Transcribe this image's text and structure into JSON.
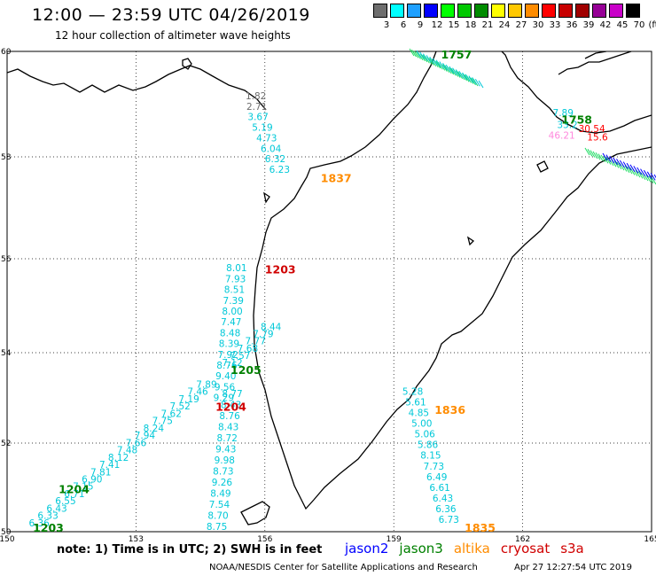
{
  "header": {
    "title": "12:00 — 23:59 UTC 04/26/2019",
    "subtitle": "12 hour collection of altimeter wave heights"
  },
  "legend": {
    "unit": "(ft)",
    "bins": [
      {
        "label": "3",
        "color": "#6e6e6e"
      },
      {
        "label": "6",
        "color": "#00ffff"
      },
      {
        "label": "9",
        "color": "#1ea0ff"
      },
      {
        "label": "12",
        "color": "#0000ff"
      },
      {
        "label": "15",
        "color": "#00ff00"
      },
      {
        "label": "18",
        "color": "#00c800"
      },
      {
        "label": "21",
        "color": "#008c00"
      },
      {
        "label": "24",
        "color": "#ffff00"
      },
      {
        "label": "27",
        "color": "#ffc800"
      },
      {
        "label": "30",
        "color": "#ff8c00"
      },
      {
        "label": "33",
        "color": "#ff0000"
      },
      {
        "label": "36",
        "color": "#c80000"
      },
      {
        "label": "39",
        "color": "#a00000"
      },
      {
        "label": "42",
        "color": "#960096"
      },
      {
        "label": "45",
        "color": "#c800c8"
      },
      {
        "label": "70",
        "color": "#000000"
      }
    ]
  },
  "map": {
    "lon_ticks": [
      "150",
      "153",
      "156",
      "159",
      "162",
      "165"
    ],
    "lat_ticks": [
      "60",
      "58",
      "56",
      "54",
      "52",
      "50"
    ],
    "lon_range": [
      150,
      165
    ],
    "lat_range": [
      50,
      60
    ],
    "pass_labels": [
      {
        "text": "1837",
        "lon": 157.3,
        "lat": 57.28,
        "color": "#ff8c00"
      },
      {
        "text": "1203",
        "lon": 156.0,
        "lat": 55.38,
        "color": "#d00000"
      },
      {
        "text": "1205",
        "lon": 155.2,
        "lat": 53.28,
        "color": "#008000"
      },
      {
        "text": "1204",
        "lon": 154.85,
        "lat": 52.52,
        "color": "#d00000"
      },
      {
        "text": "1836",
        "lon": 159.95,
        "lat": 52.45,
        "color": "#ff8c00"
      },
      {
        "text": "1204",
        "lon": 151.2,
        "lat": 50.8,
        "color": "#008000"
      },
      {
        "text": "1203",
        "lon": 150.6,
        "lat": 50.0,
        "color": "#008000"
      },
      {
        "text": "1835",
        "lon": 160.65,
        "lat": 50.0,
        "color": "#ff8c00"
      },
      {
        "text": "1758",
        "lon": 162.9,
        "lat": 58.5,
        "color": "#008000"
      },
      {
        "text": "1757",
        "lon": 160.1,
        "lat": 59.85,
        "color": "#008000"
      }
    ],
    "tracks": [
      {
        "name": "track-cryosat-north",
        "color": "#6e6e6e",
        "values": [
          "1.82",
          "2.71"
        ],
        "start": [
          155.55,
          59.0
        ],
        "step": [
          0.02,
          -0.22
        ]
      },
      {
        "name": "track-cryosat-north-b",
        "color": "#00c8d8",
        "values": [
          "3.67",
          "5.19",
          "4.73",
          "6.04",
          "6.32",
          "6.23"
        ],
        "start": [
          155.6,
          58.57
        ],
        "step": [
          0.1,
          -0.22
        ]
      },
      {
        "name": "track-1203-upper",
        "color": "#00c8d8",
        "values": [
          "8.01",
          "7.93",
          "8.51",
          "7.39",
          "8.00",
          "7.47",
          "8.48",
          "8.39",
          "7.92",
          "8.76",
          "9.40",
          "9.56",
          "9.29"
        ],
        "start": [
          155.1,
          55.42
        ],
        "step": [
          -0.025,
          -0.225
        ]
      },
      {
        "name": "track-1205",
        "color": "#00c8d8",
        "values": [
          "8.44",
          "7.79",
          "7.77",
          "7.68",
          "7.57",
          "7.12"
        ],
        "start": [
          155.9,
          54.2
        ],
        "step": [
          -0.18,
          -0.15
        ]
      },
      {
        "name": "track-1204-diag",
        "color": "#00c8d8",
        "values": [
          "7.89",
          "7.46",
          "7.19",
          "7.52",
          "7.62",
          "7.75",
          "8.24",
          "7.94",
          "7.66",
          "7.48",
          "8.12",
          "7.41",
          "7.81",
          "6.90",
          "7.15",
          "6.71",
          "6.55",
          "6.43",
          "6.33",
          "6.36"
        ],
        "start": [
          154.4,
          53.0
        ],
        "step": [
          -0.205,
          -0.152
        ]
      },
      {
        "name": "track-1204-lower",
        "color": "#00c8d8",
        "values": [
          "8.77",
          "8.43",
          "8.76",
          "8.43",
          "8.72",
          "9.43",
          "9.98",
          "8.73",
          "9.26",
          "8.49",
          "7.54",
          "8.70",
          "8.75"
        ],
        "start": [
          155.0,
          52.8
        ],
        "step": [
          -0.03,
          -0.23
        ]
      },
      {
        "name": "track-1836",
        "color": "#00c8d8",
        "values": [
          "5.28",
          "5.61",
          "4.85",
          "5.00",
          "5.06",
          "5.86",
          "8.15",
          "7.73",
          "6.49",
          "6.61",
          "6.43",
          "6.36",
          "6.73"
        ],
        "start": [
          159.2,
          52.85
        ],
        "step": [
          0.07,
          -0.222
        ]
      },
      {
        "name": "track-kamchatka-east",
        "color": "#00c8d8",
        "values": [
          "7.89",
          "33.2"
        ],
        "start": [
          162.7,
          58.65
        ],
        "step": [
          0.1,
          -0.25
        ]
      },
      {
        "name": "track-kamchatka-red",
        "color": "#ff0000",
        "values": [
          "30.54",
          "15.6"
        ],
        "start": [
          163.3,
          58.32
        ],
        "step": [
          0.2,
          -0.17
        ]
      },
      {
        "name": "track-kamchatka-pink",
        "color": "#ff88dd",
        "values": [
          "46.21"
        ],
        "start": [
          162.6,
          58.18
        ],
        "step": [
          0,
          0
        ]
      }
    ]
  },
  "footer": {
    "note": "note:  1) Time is in UTC;  2) SWH is in feet",
    "satellites": [
      {
        "label": "jason2",
        "color": "#0000ff"
      },
      {
        "label": "jason3",
        "color": "#008000"
      },
      {
        "label": "altika",
        "color": "#ff8c00"
      },
      {
        "label": "cryosat",
        "color": "#d00000"
      },
      {
        "label": "s3a",
        "color": "#d00000"
      }
    ],
    "credit": "NOAA/NESDIS Center for Satellite Applications and Research",
    "timestamp": "Apr 27 12:27:54 UTC 2019"
  }
}
